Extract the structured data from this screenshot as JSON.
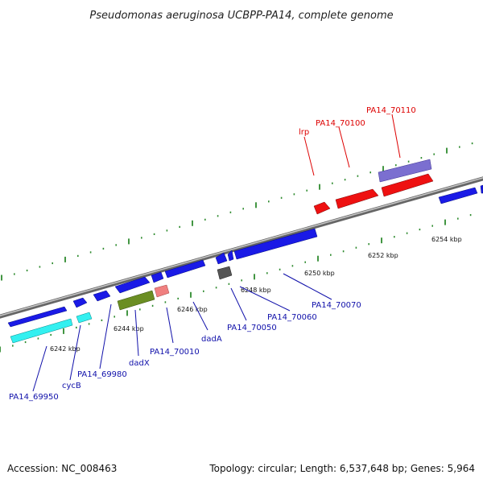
{
  "title": "Pseudomonas aeruginosa UCBPP-PA14, complete genome",
  "footer": {
    "accession": "Accession: NC_008463",
    "summary": "Topology: circular; Length: 6,537,648 bp; Genes: 5,964"
  },
  "colors": {
    "backbone": "#888888",
    "tick": "#2e8b2e",
    "gene_blue": "#1a1ae6",
    "gene_red": "#ee1111",
    "gene_lavender": "#7b6fd0",
    "gene_cyan": "#33f0f0",
    "gene_olive": "#6b8e23",
    "gene_pink": "#f08080",
    "gene_gray": "#555555",
    "label_red": "#dd0000",
    "label_blue": "#1010aa"
  },
  "ticks": {
    "major": [
      {
        "label": "6242 kbp"
      },
      {
        "label": "6244 kbp"
      },
      {
        "label": "6246 kbp"
      },
      {
        "label": "6248 kbp"
      },
      {
        "label": "6250 kbp"
      },
      {
        "label": "6252 kbp"
      },
      {
        "label": "6254 kbp"
      }
    ]
  },
  "labels": {
    "top": [
      "PA14_70110",
      "PA14_70100",
      "lrp"
    ],
    "bottom": [
      "PA14_69950",
      "cycB",
      "PA14_69980",
      "dadX",
      "PA14_70010",
      "dadA",
      "PA14_70050",
      "PA14_70060",
      "PA14_70070"
    ]
  }
}
